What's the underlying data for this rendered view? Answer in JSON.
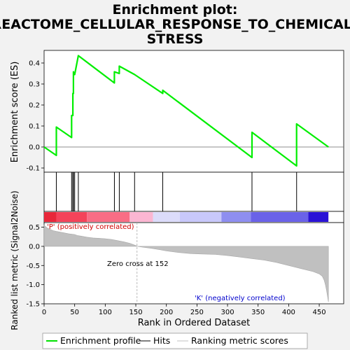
{
  "chart_data": {
    "type": "line",
    "title_lines": [
      "Enrichment plot:",
      "REACTOME_CELLULAR_RESPONSE_TO_CHEMICAL_",
      "STRESS"
    ],
    "xlabel": "Rank in Ordered Dataset",
    "es_ylabel": "Enrichment score (ES)",
    "metric_ylabel": "Ranked list metric (Signal2Noise)",
    "xlim": [
      0,
      490
    ],
    "x_ticks": [
      0,
      50,
      100,
      150,
      200,
      250,
      300,
      350,
      400,
      450
    ],
    "es_ylim": [
      -0.12,
      0.46
    ],
    "es_ticks": [
      -0.1,
      0.0,
      0.1,
      0.2,
      0.3,
      0.4
    ],
    "es_tick_labels": [
      "-0.1",
      "0.0",
      "0.1",
      "0.2",
      "0.3",
      "0.4"
    ],
    "metric_ylim": [
      -1.5,
      0.62
    ],
    "metric_ticks": [
      -1.5,
      -1.0,
      -0.5,
      0.0,
      0.5
    ],
    "metric_tick_labels": [
      "-1.5",
      "-1.0",
      "-0.5",
      "0.0",
      "0.5"
    ],
    "n_genes": 465,
    "hits": [
      20,
      45,
      47,
      48,
      50,
      56,
      115,
      123,
      148,
      194,
      340,
      413
    ],
    "es_curve": {
      "x": [
        0,
        20,
        20,
        45,
        45,
        47,
        47,
        48,
        48,
        50,
        50,
        56,
        56,
        115,
        115,
        123,
        123,
        148,
        148,
        194,
        194,
        340,
        340,
        413,
        413,
        465
      ],
      "y": [
        0.0,
        -0.04,
        0.095,
        0.045,
        0.15,
        0.15,
        0.255,
        0.255,
        0.358,
        0.345,
        0.345,
        0.435,
        0.435,
        0.305,
        0.358,
        0.35,
        0.385,
        0.345,
        0.345,
        0.255,
        0.27,
        -0.05,
        0.07,
        -0.09,
        0.11,
        0.0
      ]
    },
    "metric_curve": {
      "x": [
        0,
        5,
        10,
        15,
        20,
        30,
        40,
        50,
        55,
        60,
        70,
        80,
        90,
        100,
        110,
        120,
        130,
        140,
        145,
        150,
        152,
        160,
        175,
        190,
        200,
        220,
        240,
        260,
        280,
        300,
        320,
        340,
        360,
        380,
        400,
        420,
        440,
        450,
        455,
        458,
        460,
        462,
        464,
        465
      ],
      "y": [
        0.55,
        0.48,
        0.44,
        0.41,
        0.39,
        0.36,
        0.33,
        0.31,
        0.28,
        0.27,
        0.24,
        0.22,
        0.21,
        0.2,
        0.18,
        0.15,
        0.12,
        0.08,
        0.05,
        0.02,
        0.0,
        -0.02,
        -0.05,
        -0.09,
        -0.12,
        -0.16,
        -0.19,
        -0.2,
        -0.21,
        -0.24,
        -0.28,
        -0.32,
        -0.36,
        -0.42,
        -0.5,
        -0.58,
        -0.66,
        -0.72,
        -0.78,
        -0.88,
        -1.0,
        -1.15,
        -1.35,
        -1.45
      ]
    },
    "heat_bands": [
      {
        "from": 0,
        "to": 20,
        "color": "#e8273a"
      },
      {
        "from": 20,
        "to": 70,
        "color": "#f4435a"
      },
      {
        "from": 70,
        "to": 140,
        "color": "#f86d85"
      },
      {
        "from": 140,
        "to": 178,
        "color": "#fbb6d2"
      },
      {
        "from": 178,
        "to": 222,
        "color": "#dcdcfa"
      },
      {
        "from": 222,
        "to": 290,
        "color": "#c8c8fa"
      },
      {
        "from": 290,
        "to": 338,
        "color": "#8e8ef0"
      },
      {
        "from": 338,
        "to": 432,
        "color": "#6a62e8"
      },
      {
        "from": 432,
        "to": 465,
        "color": "#2a12d6"
      }
    ],
    "zero_cross": 152,
    "annotations": {
      "positive": "'P' (positively correlated)",
      "negative": "'K' (negatively correlated)",
      "zero_cross": "Zero cross at 152"
    },
    "legend": {
      "placement": "bottom",
      "items": [
        {
          "label": "Enrichment profile",
          "color": "#00e000"
        },
        {
          "label": "Hits",
          "color": "#000000"
        },
        {
          "label": "Ranking metric scores",
          "color": "#c0c0c0"
        }
      ]
    },
    "colors": {
      "es_line": "#00ee00",
      "metric_fill": "#c0c0c0",
      "positive_text": "#d00000",
      "negative_text": "#0000cc",
      "zero_line": "#aaaaaa"
    }
  }
}
